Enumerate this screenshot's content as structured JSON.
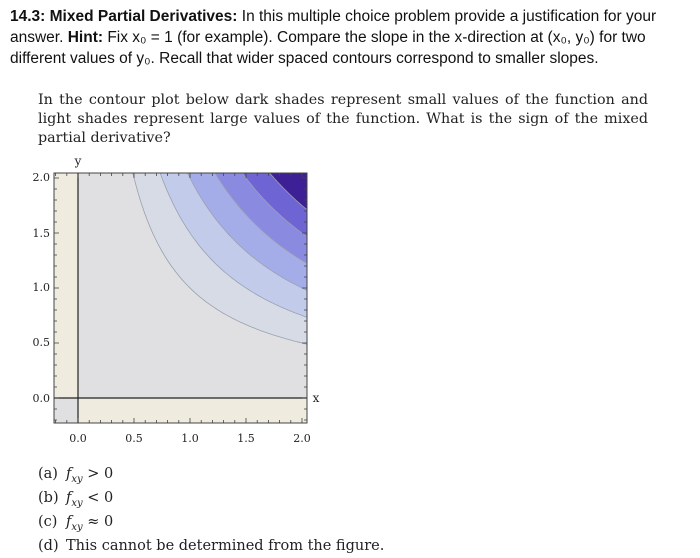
{
  "header": {
    "number_title": "14.3: Mixed Partial Derivatives:",
    "text1": " In this multiple choice problem provide a justification for your answer. ",
    "hint_label": "Hint:",
    "text2": " Fix x₀ = 1 (for example). Compare the slope in the x-direction at (x₀, y₀) for two different values of y₀. Recall that wider spaced contours correspond to smaller slopes."
  },
  "prompt": "In the contour plot below dark shades represent small values of the function and light shades represent large values of the function. What is the sign of the mixed partial derivative?",
  "plot": {
    "xlabel": "x",
    "ylabel": "y",
    "x_ticks": [
      "0.0",
      "0.5",
      "1.0",
      "1.5",
      "2.0"
    ],
    "y_ticks": [
      "2.0",
      "1.5",
      "1.0",
      "0.5",
      "0.0"
    ],
    "xlim": [
      -0.25,
      2.0
    ],
    "ylim": [
      -0.25,
      2.0
    ],
    "contour_levels": [
      1.0,
      1.5,
      2.0,
      2.5,
      3.0,
      3.5
    ],
    "colors": {
      "band_lightest": "#f0ebdf",
      "band_0": "#e0e0e2",
      "band_1": "#d6dbe6",
      "band_2": "#c3cbeb",
      "band_3": "#a5ade9",
      "band_4": "#8a8ae1",
      "band_5": "#6e64d3",
      "band_darkest": "#3d1f96",
      "contour_line": "#9aa0b0"
    }
  },
  "choices": [
    {
      "label": "(a)",
      "relation": " > 0"
    },
    {
      "label": "(b)",
      "relation": " < 0"
    },
    {
      "label": "(c)",
      "relation": " ≈ 0"
    },
    {
      "label": "(d)",
      "text": "This cannot be determined from the figure."
    }
  ],
  "choice_symbol": "f",
  "choice_subscript": "xy"
}
